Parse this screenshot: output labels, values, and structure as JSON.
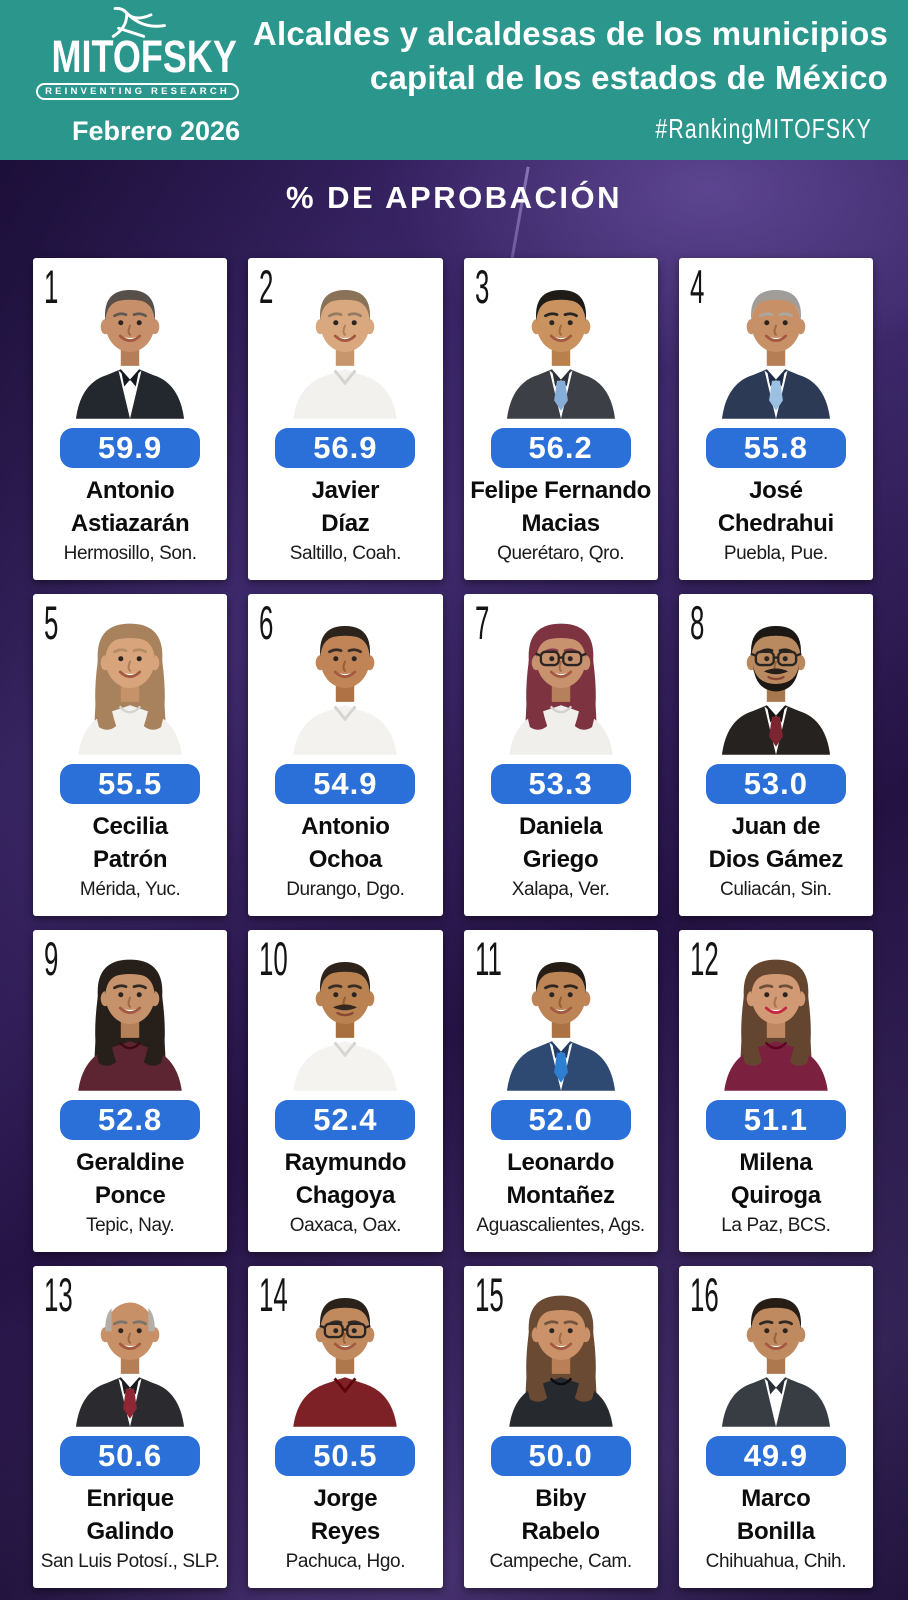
{
  "header": {
    "logo_name": "MITOFSKY",
    "logo_tagline": "REINVENTING RESEARCH",
    "title_line1": "Alcaldes y alcaldesas de los municipios",
    "title_line2": "capital de los estados de México",
    "date": "Febrero 2026",
    "hashtag": "#RankingMITOFSKY"
  },
  "section": {
    "title": "% DE APROBACIÓN"
  },
  "colors": {
    "header_teal": "#2a968c",
    "pill_blue": "#2b6fd8",
    "background_purple": "#2f1c58",
    "card_white": "#ffffff"
  },
  "icons": [
    {
      "name": "mitofsky-bird-icon",
      "meaning": "abstract bird logo glyph"
    }
  ],
  "ranking": [
    {
      "rank": 1,
      "score": "59.9",
      "name_lines": [
        "Antonio",
        "Astiazarán"
      ],
      "city": "Hermosillo, Son.",
      "avatar": {
        "style": "short",
        "hair": "#574f49",
        "skin": "#c8906a",
        "top": "suit",
        "top_color": "#23272e",
        "tie": null,
        "glasses": false,
        "mustache": false,
        "beard": false
      }
    },
    {
      "rank": 2,
      "score": "56.9",
      "name_lines": [
        "Javier",
        "Díaz"
      ],
      "city": "Saltillo, Coah.",
      "avatar": {
        "style": "short",
        "hair": "#8a7258",
        "skin": "#d9a87e",
        "top": "shirt",
        "top_color": "#f2f1ed",
        "tie": null,
        "glasses": false,
        "mustache": false,
        "beard": false
      }
    },
    {
      "rank": 3,
      "score": "56.2",
      "name_lines": [
        "Felipe Fernando",
        "Macias"
      ],
      "city": "Querétaro, Qro.",
      "avatar": {
        "style": "short",
        "hair": "#1f1b17",
        "skin": "#c9925f",
        "top": "suit",
        "top_color": "#3c4046",
        "tie": "#86acd8",
        "glasses": false,
        "mustache": false,
        "beard": false
      }
    },
    {
      "rank": 4,
      "score": "55.8",
      "name_lines": [
        "José",
        "Chedrahui"
      ],
      "city": "Puebla, Pue.",
      "avatar": {
        "style": "short",
        "hair": "#a09d99",
        "skin": "#c79067",
        "top": "suit",
        "top_color": "#2c3a55",
        "tie": "#9cc0e2",
        "glasses": false,
        "mustache": false,
        "beard": false
      }
    },
    {
      "rank": 5,
      "score": "55.5",
      "name_lines": [
        "Cecilia",
        "Patrón"
      ],
      "city": "Mérida, Yuc.",
      "avatar": {
        "style": "long",
        "hair": "#a8825c",
        "skin": "#d8a47c",
        "top": "blouse",
        "top_color": "#f3f1ee",
        "tie": null,
        "glasses": false,
        "mustache": false,
        "beard": false
      }
    },
    {
      "rank": 6,
      "score": "54.9",
      "name_lines": [
        "Antonio",
        "Ochoa"
      ],
      "city": "Durango, Dgo.",
      "avatar": {
        "style": "short",
        "hair": "#2c231d",
        "skin": "#c08457",
        "top": "shirt",
        "top_color": "#f3f2ef",
        "tie": null,
        "glasses": false,
        "mustache": false,
        "beard": false
      }
    },
    {
      "rank": 7,
      "score": "53.3",
      "name_lines": [
        "Daniela",
        "Griego"
      ],
      "city": "Xalapa, Ver.",
      "avatar": {
        "style": "long",
        "hair": "#7d3440",
        "skin": "#c9926e",
        "top": "blouse",
        "top_color": "#f1efec",
        "tie": null,
        "glasses": true,
        "mustache": false,
        "beard": false
      }
    },
    {
      "rank": 8,
      "score": "53.0",
      "name_lines": [
        "Juan de",
        "Dios Gámez"
      ],
      "city": "Culiacán, Sin.",
      "avatar": {
        "style": "short",
        "hair": "#1d1813",
        "skin": "#b9895f",
        "top": "suit",
        "top_color": "#262220",
        "tie": "#7c2430",
        "glasses": true,
        "mustache": true,
        "beard": true
      }
    },
    {
      "rank": 9,
      "score": "52.8",
      "name_lines": [
        "Geraldine",
        "Ponce"
      ],
      "city": "Tepic, Nay.",
      "avatar": {
        "style": "long",
        "hair": "#271f19",
        "skin": "#c6926b",
        "top": "blouse",
        "top_color": "#5c2531",
        "tie": null,
        "glasses": false,
        "mustache": false,
        "beard": false
      }
    },
    {
      "rank": 10,
      "score": "52.4",
      "name_lines": [
        "Raymundo",
        "Chagoya"
      ],
      "city": "Oaxaca, Oax.",
      "avatar": {
        "style": "short",
        "hair": "#2d231b",
        "skin": "#b98250",
        "top": "shirt",
        "top_color": "#f4f3f0",
        "tie": null,
        "glasses": false,
        "mustache": true,
        "beard": false
      }
    },
    {
      "rank": 11,
      "score": "52.0",
      "name_lines": [
        "Leonardo",
        "Montañez"
      ],
      "city": "Aguascalientes, Ags.",
      "avatar": {
        "style": "short",
        "hair": "#241c15",
        "skin": "#bd8456",
        "top": "suit",
        "top_color": "#2e4a72",
        "tie": "#2f7fd1",
        "glasses": false,
        "mustache": false,
        "beard": false
      }
    },
    {
      "rank": 12,
      "score": "51.1",
      "name_lines": [
        "Milena",
        "Quiroga"
      ],
      "city": "La Paz, BCS.",
      "avatar": {
        "style": "long",
        "hair": "#64452f",
        "skin": "#d29a74",
        "top": "blouse",
        "top_color": "#7c2040",
        "tie": null,
        "glasses": false,
        "mustache": false,
        "beard": false,
        "lips": "#c5283d"
      }
    },
    {
      "rank": 13,
      "score": "50.6",
      "name_lines": [
        "Enrique",
        "Galindo"
      ],
      "city": "San Luis Potosí., SLP.",
      "avatar": {
        "style": "bald",
        "hair": "#b3aea8",
        "skin": "#c79067",
        "top": "suit",
        "top_color": "#2b2a2f",
        "tie": "#8f2633",
        "glasses": false,
        "mustache": false,
        "beard": false
      }
    },
    {
      "rank": 14,
      "score": "50.5",
      "name_lines": [
        "Jorge",
        "Reyes"
      ],
      "city": "Pachuca, Hgo.",
      "avatar": {
        "style": "short",
        "hair": "#2a211a",
        "skin": "#c08a5e",
        "top": "shirt",
        "top_color": "#7e2126",
        "tie": null,
        "glasses": true,
        "mustache": false,
        "beard": false
      }
    },
    {
      "rank": 15,
      "score": "50.0",
      "name_lines": [
        "Biby",
        "Rabelo"
      ],
      "city": "Campeche, Cam.",
      "avatar": {
        "style": "long",
        "hair": "#6b4a33",
        "skin": "#cb9168",
        "top": "blouse",
        "top_color": "#26292e",
        "tie": null,
        "glasses": false,
        "mustache": false,
        "beard": false
      }
    },
    {
      "rank": 16,
      "score": "49.9",
      "name_lines": [
        "Marco",
        "Bonilla"
      ],
      "city": "Chihuahua, Chih.",
      "avatar": {
        "style": "short",
        "hair": "#251d16",
        "skin": "#bf8a5f",
        "top": "suit",
        "top_color": "#383d44",
        "tie": null,
        "glasses": false,
        "mustache": false,
        "beard": false
      }
    }
  ],
  "chart_data": {
    "type": "table",
    "title": "% DE APROBACIÓN",
    "subtitle": "Alcaldes y alcaldesas de los municipios capital de los estados de México — Febrero 2026",
    "columns": [
      "rank",
      "mayor",
      "municipality",
      "approval_pct"
    ],
    "rows": [
      [
        1,
        "Antonio Astiazarán",
        "Hermosillo, Son.",
        59.9
      ],
      [
        2,
        "Javier Díaz",
        "Saltillo, Coah.",
        56.9
      ],
      [
        3,
        "Felipe Fernando Macias",
        "Querétaro, Qro.",
        56.2
      ],
      [
        4,
        "José Chedrahui",
        "Puebla, Pue.",
        55.8
      ],
      [
        5,
        "Cecilia Patrón",
        "Mérida, Yuc.",
        55.5
      ],
      [
        6,
        "Antonio Ochoa",
        "Durango, Dgo.",
        54.9
      ],
      [
        7,
        "Daniela Griego",
        "Xalapa, Ver.",
        53.3
      ],
      [
        8,
        "Juan de Dios Gámez",
        "Culiacán, Sin.",
        53.0
      ],
      [
        9,
        "Geraldine Ponce",
        "Tepic, Nay.",
        52.8
      ],
      [
        10,
        "Raymundo Chagoya",
        "Oaxaca, Oax.",
        52.4
      ],
      [
        11,
        "Leonardo Montañez",
        "Aguascalientes, Ags.",
        52.0
      ],
      [
        12,
        "Milena Quiroga",
        "La Paz, BCS.",
        51.1
      ],
      [
        13,
        "Enrique Galindo",
        "San Luis Potosí., SLP.",
        50.6
      ],
      [
        14,
        "Jorge Reyes",
        "Pachuca, Hgo.",
        50.5
      ],
      [
        15,
        "Biby Rabelo",
        "Campeche, Cam.",
        50.0
      ],
      [
        16,
        "Marco Bonilla",
        "Chihuahua, Chih.",
        49.9
      ]
    ]
  }
}
